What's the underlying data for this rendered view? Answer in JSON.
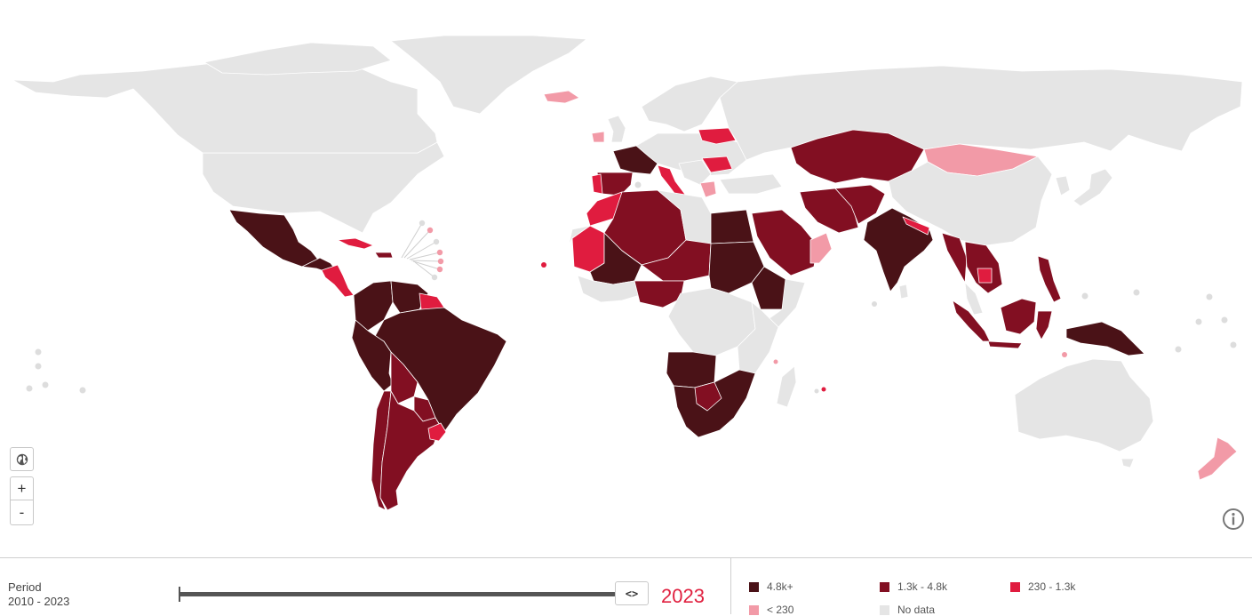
{
  "colors": {
    "tier1": "#4a1217",
    "tier2": "#820f22",
    "tier3": "#e01c3f",
    "tier4": "#f29aa7",
    "nodata": "#e5e5e5",
    "accent": "#e0203f"
  },
  "map": {
    "countries": [
      {
        "name": "USA",
        "tier": "nodata"
      },
      {
        "name": "Canada",
        "tier": "nodata"
      },
      {
        "name": "Greenland",
        "tier": "nodata"
      },
      {
        "name": "Mexico",
        "tier": "tier1"
      },
      {
        "name": "Central America",
        "tier": "tier1"
      },
      {
        "name": "Nicaragua",
        "tier": "tier3"
      },
      {
        "name": "Cuba",
        "tier": "tier3"
      },
      {
        "name": "Haiti",
        "tier": "tier2"
      },
      {
        "name": "Colombia",
        "tier": "tier1"
      },
      {
        "name": "Venezuela",
        "tier": "tier1"
      },
      {
        "name": "Guyana",
        "tier": "tier3"
      },
      {
        "name": "Brazil",
        "tier": "tier1"
      },
      {
        "name": "Peru",
        "tier": "tier1"
      },
      {
        "name": "Bolivia",
        "tier": "tier2"
      },
      {
        "name": "Paraguay",
        "tier": "tier2"
      },
      {
        "name": "Chile",
        "tier": "tier2"
      },
      {
        "name": "Argentina",
        "tier": "tier2"
      },
      {
        "name": "Uruguay",
        "tier": "tier3"
      },
      {
        "name": "Iceland",
        "tier": "tier4"
      },
      {
        "name": "Ireland",
        "tier": "tier4"
      },
      {
        "name": "UK",
        "tier": "nodata"
      },
      {
        "name": "France",
        "tier": "tier1"
      },
      {
        "name": "Spain",
        "tier": "tier2"
      },
      {
        "name": "Portugal",
        "tier": "tier3"
      },
      {
        "name": "Italy",
        "tier": "tier3"
      },
      {
        "name": "Poland",
        "tier": "tier3"
      },
      {
        "name": "Romania",
        "tier": "tier3"
      },
      {
        "name": "Greece",
        "tier": "tier4"
      },
      {
        "name": "Morocco",
        "tier": "tier3"
      },
      {
        "name": "Mauritania",
        "tier": "tier3"
      },
      {
        "name": "Algeria",
        "tier": "tier2"
      },
      {
        "name": "Libya",
        "tier": "nodata"
      },
      {
        "name": "Egypt",
        "tier": "tier1"
      },
      {
        "name": "Sudan",
        "tier": "tier1"
      },
      {
        "name": "Ethiopia",
        "tier": "tier1"
      },
      {
        "name": "Niger",
        "tier": "tier2"
      },
      {
        "name": "Mali",
        "tier": "tier1"
      },
      {
        "name": "Nigeria",
        "tier": "tier2"
      },
      {
        "name": "DR Congo",
        "tier": "tier1"
      },
      {
        "name": "Angola",
        "tier": "tier1"
      },
      {
        "name": "Southern Africa",
        "tier": "tier1"
      },
      {
        "name": "Zimbabwe",
        "tier": "tier2"
      },
      {
        "name": "Madagascar",
        "tier": "nodata"
      },
      {
        "name": "Saudi Arabia",
        "tier": "tier2"
      },
      {
        "name": "Oman",
        "tier": "tier4"
      },
      {
        "name": "Iran",
        "tier": "tier2"
      },
      {
        "name": "Afghanistan",
        "tier": "tier2"
      },
      {
        "name": "Kazakhstan",
        "tier": "tier2"
      },
      {
        "name": "Mongolia",
        "tier": "tier4"
      },
      {
        "name": "Russia",
        "tier": "nodata"
      },
      {
        "name": "China",
        "tier": "nodata"
      },
      {
        "name": "India",
        "tier": "tier1"
      },
      {
        "name": "Nepal",
        "tier": "tier3"
      },
      {
        "name": "Myanmar",
        "tier": "tier2"
      },
      {
        "name": "Indochina",
        "tier": "tier2"
      },
      {
        "name": "Cambodia",
        "tier": "tier3"
      },
      {
        "name": "Philippines",
        "tier": "tier2"
      },
      {
        "name": "Indonesia",
        "tier": "tier2"
      },
      {
        "name": "Papua New Guinea",
        "tier": "tier1"
      },
      {
        "name": "Australia",
        "tier": "nodata"
      },
      {
        "name": "New Zealand",
        "tier": "tier4"
      },
      {
        "name": "Japan",
        "tier": "nodata"
      }
    ]
  },
  "controls": {
    "globe_icon": "globe-icon",
    "zoom_in_label": "+",
    "zoom_out_label": "-",
    "info_icon": "info-icon"
  },
  "timeline": {
    "period_label": "Period",
    "period_range": "2010 - 2023",
    "handle_label": "<>",
    "year": "2023"
  },
  "legend": [
    {
      "label": "4.8k+",
      "color": "#4a1217"
    },
    {
      "label": "1.3k - 4.8k",
      "color": "#820f22"
    },
    {
      "label": "230 - 1.3k",
      "color": "#e01c3f"
    },
    {
      "label": "< 230",
      "color": "#f29aa7"
    },
    {
      "label": "No data",
      "color": "#e5e5e5"
    }
  ]
}
